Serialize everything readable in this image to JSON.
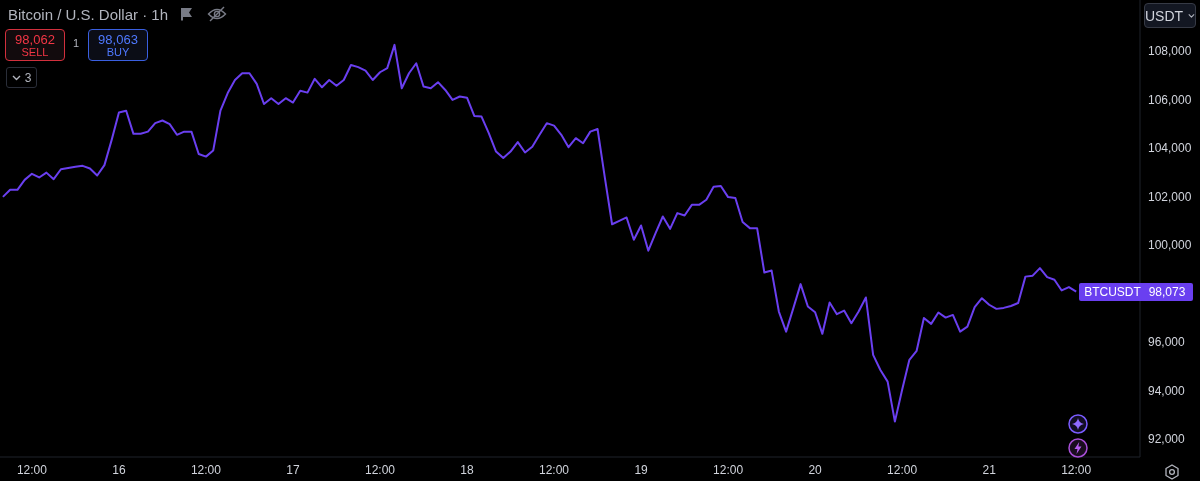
{
  "chart_data": {
    "type": "line",
    "title": "Bitcoin / U.S. Dollar · 1h",
    "categories": [
      null,
      null,
      null,
      null,
      "12:00",
      null,
      null,
      null,
      null,
      null,
      null,
      null,
      null,
      null,
      null,
      null,
      "16",
      null,
      null,
      null,
      null,
      null,
      null,
      null,
      null,
      null,
      null,
      null,
      "12:00",
      null,
      null,
      null,
      null,
      null,
      null,
      null,
      null,
      null,
      null,
      null,
      "17",
      null,
      null,
      null,
      null,
      null,
      null,
      null,
      null,
      null,
      null,
      null,
      "12:00",
      null,
      null,
      null,
      null,
      null,
      null,
      null,
      null,
      null,
      null,
      null,
      "18",
      null,
      null,
      null,
      null,
      null,
      null,
      null,
      null,
      null,
      null,
      null,
      "12:00",
      null,
      null,
      null,
      null,
      null,
      null,
      null,
      null,
      null,
      null,
      null,
      "19",
      null,
      null,
      null,
      null,
      null,
      null,
      null,
      null,
      null,
      null,
      null,
      "12:00",
      null,
      null,
      null,
      null,
      null,
      null,
      null,
      null,
      null,
      null,
      null,
      "20",
      null,
      null,
      null,
      null,
      null,
      null,
      null,
      null,
      null,
      null,
      null,
      "12:00",
      null,
      null,
      null,
      null,
      null,
      null,
      null,
      null,
      null,
      null,
      null,
      "21",
      null,
      null,
      null,
      null,
      null,
      null,
      null,
      null,
      null,
      null,
      null,
      "12:00"
    ],
    "ylim": [
      91250,
      110100
    ],
    "yticks": [
      {
        "value": 92000,
        "label": "92,000"
      },
      {
        "value": 94000,
        "label": "94,000"
      },
      {
        "value": 96000,
        "label": "96,000"
      },
      {
        "value": 100000,
        "label": "100,000"
      },
      {
        "value": 102000,
        "label": "102,000"
      },
      {
        "value": 104000,
        "label": "104,000"
      },
      {
        "value": 106000,
        "label": "106,000"
      },
      {
        "value": 108000,
        "label": "108,000"
      }
    ],
    "series": [
      {
        "name": "BTCUSDT",
        "color": "#6a3ff0",
        "values": [
          101980,
          102270,
          102270,
          102680,
          102930,
          102780,
          102980,
          102710,
          103120,
          103170,
          103220,
          103260,
          103150,
          102860,
          103290,
          104330,
          105460,
          105530,
          104580,
          104580,
          104670,
          105020,
          105130,
          104980,
          104540,
          104670,
          104670,
          103750,
          103640,
          103890,
          105540,
          106260,
          106800,
          107080,
          107080,
          106640,
          105810,
          106050,
          105810,
          106050,
          105870,
          106360,
          106280,
          106850,
          106500,
          106800,
          106560,
          106800,
          107420,
          107330,
          107190,
          106800,
          107120,
          107290,
          108250,
          106460,
          107080,
          107490,
          106530,
          106460,
          106710,
          106390,
          105980,
          106120,
          106070,
          105320,
          105290,
          104610,
          103850,
          103580,
          103850,
          104240,
          103810,
          104050,
          104540,
          105020,
          104920,
          104540,
          104030,
          104400,
          104190,
          104670,
          104780,
          102780,
          100850,
          100990,
          101130,
          100210,
          100800,
          99760,
          100480,
          101170,
          100660,
          101310,
          101210,
          101650,
          101650,
          101860,
          102400,
          102430,
          101970,
          101930,
          100940,
          100690,
          100690,
          98860,
          98940,
          97250,
          96420,
          97390,
          98380,
          97460,
          97220,
          96330,
          97620,
          97140,
          97290,
          96770,
          97250,
          97830,
          95460,
          94840,
          94360,
          92710,
          94020,
          95260,
          95630,
          96980,
          96740,
          97210,
          97000,
          97110,
          96420,
          96630,
          97430,
          97800,
          97530,
          97360,
          97400,
          97480,
          97600,
          98690,
          98730,
          99040,
          98670,
          98560,
          98120,
          98260,
          98073
        ]
      }
    ],
    "annotations": [
      "98,062",
      "SELL",
      "1",
      "98,063",
      "BUY",
      "3",
      "USDT",
      "98,073"
    ]
  }
}
